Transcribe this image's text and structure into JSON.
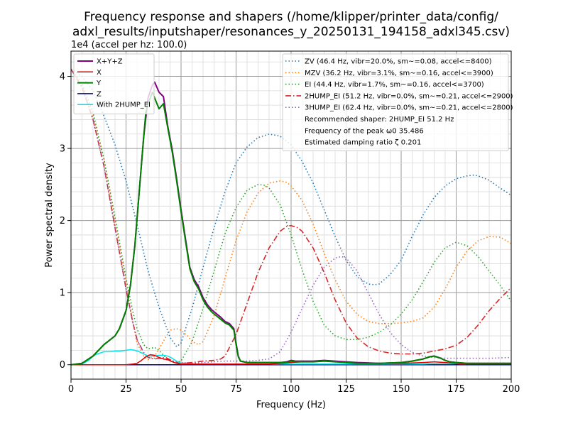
{
  "chart_data": {
    "type": "line",
    "title_lines": [
      "Frequency response and shapers (/home/klipper/printer_data/config/",
      "adxl_results/inputshaper/resonances_y_20250131_194158_adxl345.csv)"
    ],
    "xlabel": "Frequency (Hz)",
    "ylabel": "Power spectral density",
    "y_offset_label": "1e4 (accel per hz: 100.0)",
    "xlim": [
      0,
      200
    ],
    "ylim": [
      -0.2,
      4.35
    ],
    "x_ticks": [
      0,
      25,
      50,
      75,
      100,
      125,
      150,
      175,
      200
    ],
    "y_ticks": [
      0,
      1,
      2,
      3,
      4
    ],
    "grid": true,
    "legend_left": {
      "placement": "top-left"
    },
    "legend_right": {
      "placement": "top-right",
      "notes": [
        "Recommended shaper: 2HUMP_EI 51.2 Hz",
        "Frequency of the peak ω0 35.486",
        "Estimated damping ratio ζ 0.201"
      ]
    },
    "psd_series": [
      {
        "name": "X+Y+Z",
        "color": "#800080",
        "width": 2,
        "x": [
          0,
          5,
          10,
          15,
          20,
          22,
          25,
          27,
          29,
          31,
          33,
          35,
          37,
          38,
          40,
          42,
          44,
          46,
          48,
          50,
          52,
          54,
          56,
          58,
          60,
          62,
          64,
          66,
          68,
          70,
          72,
          74,
          75,
          76,
          77,
          80,
          85,
          90,
          95,
          98,
          100,
          102,
          105,
          110,
          115,
          120,
          125,
          130,
          140,
          150,
          155,
          160,
          163,
          165,
          168,
          170,
          172,
          175,
          180,
          185,
          190,
          195,
          200
        ],
        "y": [
          0,
          0.02,
          0.12,
          0.28,
          0.4,
          0.5,
          0.75,
          1.1,
          1.65,
          2.4,
          3.15,
          3.7,
          3.88,
          3.92,
          3.78,
          3.72,
          3.3,
          2.98,
          2.58,
          2.15,
          1.75,
          1.35,
          1.18,
          1.08,
          0.93,
          0.83,
          0.76,
          0.71,
          0.66,
          0.6,
          0.57,
          0.5,
          0.3,
          0.12,
          0.05,
          0.03,
          0.03,
          0.03,
          0.03,
          0.04,
          0.06,
          0.05,
          0.05,
          0.05,
          0.06,
          0.05,
          0.04,
          0.03,
          0.02,
          0.03,
          0.05,
          0.08,
          0.11,
          0.12,
          0.09,
          0.06,
          0.04,
          0.03,
          0.02,
          0.02,
          0.02,
          0.02,
          0.02
        ]
      },
      {
        "name": "X",
        "color": "#e00000",
        "width": 1.5,
        "x": [
          0,
          10,
          20,
          25,
          28,
          30,
          32,
          34,
          36,
          38,
          40,
          42,
          44,
          46,
          48,
          50,
          52,
          55,
          60,
          65,
          70,
          74,
          76,
          78,
          80,
          85,
          90,
          95,
          100,
          105,
          110,
          115,
          120,
          130,
          140,
          150,
          160,
          165,
          170,
          175,
          180,
          190,
          200
        ],
        "y": [
          0,
          0,
          0,
          0,
          0.01,
          0.02,
          0.06,
          0.11,
          0.14,
          0.13,
          0.1,
          0.08,
          0.07,
          0.04,
          0.02,
          0.01,
          0.01,
          0.01,
          0.01,
          0.01,
          0.01,
          0.01,
          0.01,
          0.01,
          0.01,
          0.01,
          0.01,
          0.02,
          0.03,
          0.04,
          0.04,
          0.05,
          0.04,
          0.03,
          0.02,
          0.02,
          0.03,
          0.04,
          0.03,
          0.02,
          0.01,
          0.01,
          0.01
        ]
      },
      {
        "name": "Y",
        "color": "#008000",
        "width": 2,
        "x": [
          0,
          5,
          10,
          15,
          20,
          22,
          25,
          27,
          29,
          31,
          33,
          34,
          35,
          37,
          38,
          40,
          42,
          44,
          46,
          48,
          50,
          52,
          54,
          56,
          58,
          60,
          62,
          64,
          66,
          68,
          70,
          72,
          74,
          75,
          76,
          77,
          80,
          85,
          90,
          95,
          98,
          100,
          102,
          105,
          110,
          115,
          120,
          125,
          130,
          140,
          150,
          155,
          160,
          163,
          165,
          168,
          170,
          172,
          175,
          180,
          185,
          190,
          195,
          200
        ],
        "y": [
          0,
          0.02,
          0.12,
          0.28,
          0.4,
          0.5,
          0.75,
          1.1,
          1.65,
          2.4,
          3.15,
          3.5,
          3.62,
          3.78,
          3.7,
          3.55,
          3.62,
          3.28,
          2.95,
          2.55,
          2.12,
          1.72,
          1.33,
          1.15,
          1.05,
          0.9,
          0.8,
          0.73,
          0.68,
          0.63,
          0.58,
          0.55,
          0.48,
          0.28,
          0.11,
          0.05,
          0.03,
          0.03,
          0.03,
          0.03,
          0.03,
          0.05,
          0.04,
          0.04,
          0.04,
          0.05,
          0.04,
          0.03,
          0.02,
          0.02,
          0.03,
          0.05,
          0.08,
          0.11,
          0.12,
          0.09,
          0.06,
          0.04,
          0.03,
          0.02,
          0.02,
          0.02,
          0.02,
          0.02
        ]
      },
      {
        "name": "Z",
        "color": "#00008b",
        "width": 1.5,
        "x": [
          0,
          20,
          40,
          60,
          80,
          100,
          120,
          140,
          160,
          180,
          200
        ],
        "y": [
          0,
          0,
          0,
          0,
          0,
          0,
          0,
          0,
          0,
          0,
          0
        ]
      },
      {
        "name": "With 2HUMP_EI",
        "color": "#00e5ee",
        "width": 1.5,
        "x": [
          0,
          5,
          8,
          10,
          12,
          14,
          15,
          18,
          20,
          22,
          25,
          27,
          29,
          31,
          33,
          35,
          37,
          40,
          42,
          44,
          46,
          48,
          50,
          55,
          60,
          65,
          70,
          75,
          80,
          90,
          100,
          110,
          120,
          140,
          160,
          165,
          170,
          180,
          200
        ],
        "y": [
          0,
          0.01,
          0.06,
          0.12,
          0.15,
          0.17,
          0.18,
          0.18,
          0.19,
          0.19,
          0.2,
          0.21,
          0.2,
          0.18,
          0.15,
          0.12,
          0.12,
          0.13,
          0.13,
          0.12,
          0.09,
          0.05,
          0.02,
          0.01,
          0.01,
          0.01,
          0.01,
          0.01,
          0.01,
          0.01,
          0.01,
          0.01,
          0.01,
          0.01,
          0.01,
          0.02,
          0.02,
          0.01,
          0.01
        ]
      }
    ],
    "shaper_series": [
      {
        "name": "ZV (46.4 Hz, vibr=20.0%, sm~=0.08, accel<=8400)",
        "color": "#1f77b4",
        "dash": "1.5,3",
        "x": [
          0,
          5,
          10,
          15,
          20,
          25,
          30,
          35,
          40,
          45,
          48,
          50,
          55,
          60,
          65,
          70,
          75,
          80,
          85,
          90,
          95,
          100,
          105,
          110,
          115,
          120,
          125,
          130,
          135,
          138,
          140,
          145,
          150,
          155,
          160,
          165,
          170,
          175,
          180,
          183,
          185,
          190,
          195,
          200
        ],
        "y": [
          4.1,
          4.0,
          3.8,
          3.45,
          3.05,
          2.55,
          1.95,
          1.3,
          0.8,
          0.38,
          0.25,
          0.3,
          0.78,
          1.35,
          1.9,
          2.4,
          2.8,
          3.02,
          3.15,
          3.2,
          3.17,
          3.05,
          2.82,
          2.52,
          2.15,
          1.78,
          1.45,
          1.22,
          1.12,
          1.11,
          1.12,
          1.25,
          1.45,
          1.78,
          2.08,
          2.32,
          2.48,
          2.58,
          2.62,
          2.63,
          2.62,
          2.56,
          2.45,
          2.35
        ]
      },
      {
        "name": "MZV (36.2 Hz, vibr=3.1%, sm~=0.16, accel<=3900)",
        "color": "#ff7f0e",
        "dash": "1.5,3",
        "x": [
          0,
          5,
          10,
          15,
          20,
          25,
          28,
          30,
          33,
          35,
          38,
          40,
          43,
          45,
          48,
          50,
          53,
          55,
          58,
          60,
          65,
          70,
          75,
          80,
          85,
          90,
          95,
          98,
          100,
          105,
          110,
          115,
          120,
          125,
          130,
          135,
          140,
          145,
          150,
          155,
          160,
          165,
          170,
          175,
          180,
          185,
          190,
          195,
          200
        ],
        "y": [
          4.1,
          3.85,
          3.45,
          2.85,
          2.0,
          1.15,
          0.6,
          0.3,
          0.12,
          0.07,
          0.12,
          0.22,
          0.38,
          0.48,
          0.5,
          0.48,
          0.4,
          0.32,
          0.28,
          0.32,
          0.68,
          1.2,
          1.72,
          2.12,
          2.38,
          2.52,
          2.55,
          2.53,
          2.48,
          2.28,
          1.95,
          1.55,
          1.18,
          0.88,
          0.7,
          0.6,
          0.57,
          0.57,
          0.58,
          0.6,
          0.65,
          0.8,
          1.05,
          1.35,
          1.58,
          1.72,
          1.78,
          1.77,
          1.68
        ]
      },
      {
        "name": "EI (44.4 Hz, vibr=1.7%, sm~=0.16, accel<=3700)",
        "color": "#2ca02c",
        "dash": "1.5,3",
        "x": [
          0,
          5,
          10,
          15,
          20,
          25,
          28,
          30,
          33,
          35,
          38,
          40,
          43,
          45,
          48,
          50,
          55,
          60,
          65,
          70,
          75,
          80,
          85,
          88,
          90,
          95,
          100,
          105,
          110,
          115,
          120,
          125,
          130,
          135,
          140,
          145,
          150,
          155,
          160,
          165,
          170,
          175,
          180,
          185,
          190,
          195,
          200
        ],
        "y": [
          4.1,
          3.9,
          3.5,
          2.85,
          2.05,
          1.2,
          0.75,
          0.5,
          0.28,
          0.22,
          0.24,
          0.2,
          0.1,
          0.06,
          0.04,
          0.05,
          0.32,
          0.78,
          1.3,
          1.82,
          2.18,
          2.42,
          2.5,
          2.49,
          2.45,
          2.22,
          1.8,
          1.32,
          0.88,
          0.55,
          0.4,
          0.35,
          0.35,
          0.38,
          0.45,
          0.55,
          0.7,
          0.9,
          1.15,
          1.42,
          1.62,
          1.7,
          1.65,
          1.5,
          1.3,
          1.1,
          0.88
        ]
      },
      {
        "name": "2HUMP_EI (51.2 Hz, vibr=0.0%, sm~=0.21, accel<=2900)",
        "color": "#d62728",
        "dash": "8,3,1.5,3",
        "x": [
          0,
          5,
          10,
          15,
          20,
          25,
          28,
          30,
          33,
          35,
          38,
          40,
          43,
          45,
          48,
          50,
          55,
          60,
          65,
          68,
          70,
          75,
          80,
          85,
          90,
          95,
          98,
          100,
          103,
          105,
          110,
          115,
          120,
          125,
          130,
          135,
          140,
          145,
          150,
          155,
          160,
          165,
          170,
          175,
          180,
          185,
          190,
          195,
          200
        ],
        "y": [
          4.1,
          3.85,
          3.4,
          2.75,
          1.9,
          1.05,
          0.6,
          0.35,
          0.17,
          0.1,
          0.08,
          0.09,
          0.1,
          0.07,
          0.03,
          0.02,
          0.03,
          0.05,
          0.06,
          0.08,
          0.12,
          0.42,
          0.85,
          1.28,
          1.62,
          1.85,
          1.92,
          1.93,
          1.9,
          1.85,
          1.62,
          1.28,
          0.9,
          0.58,
          0.37,
          0.25,
          0.19,
          0.16,
          0.15,
          0.15,
          0.16,
          0.19,
          0.22,
          0.27,
          0.38,
          0.55,
          0.75,
          0.92,
          1.07
        ]
      },
      {
        "name": "3HUMP_EI (62.4 Hz, vibr=0.0%, sm~=0.21, accel<=2800)",
        "color": "#9467bd",
        "dash": "1.5,3",
        "x": [
          0,
          5,
          10,
          15,
          20,
          25,
          28,
          30,
          33,
          35,
          38,
          40,
          45,
          50,
          55,
          60,
          65,
          70,
          75,
          80,
          85,
          90,
          95,
          100,
          105,
          110,
          115,
          120,
          123,
          125,
          130,
          135,
          140,
          145,
          150,
          155,
          160,
          165,
          170,
          175,
          180,
          190,
          200
        ],
        "y": [
          4.1,
          3.85,
          3.4,
          2.75,
          1.9,
          1.05,
          0.6,
          0.35,
          0.17,
          0.1,
          0.09,
          0.09,
          0.06,
          0.03,
          0.02,
          0.03,
          0.04,
          0.05,
          0.05,
          0.05,
          0.06,
          0.08,
          0.18,
          0.45,
          0.78,
          1.1,
          1.35,
          1.48,
          1.5,
          1.48,
          1.3,
          1.0,
          0.7,
          0.45,
          0.28,
          0.17,
          0.12,
          0.1,
          0.09,
          0.09,
          0.09,
          0.09,
          0.1
        ]
      }
    ]
  }
}
